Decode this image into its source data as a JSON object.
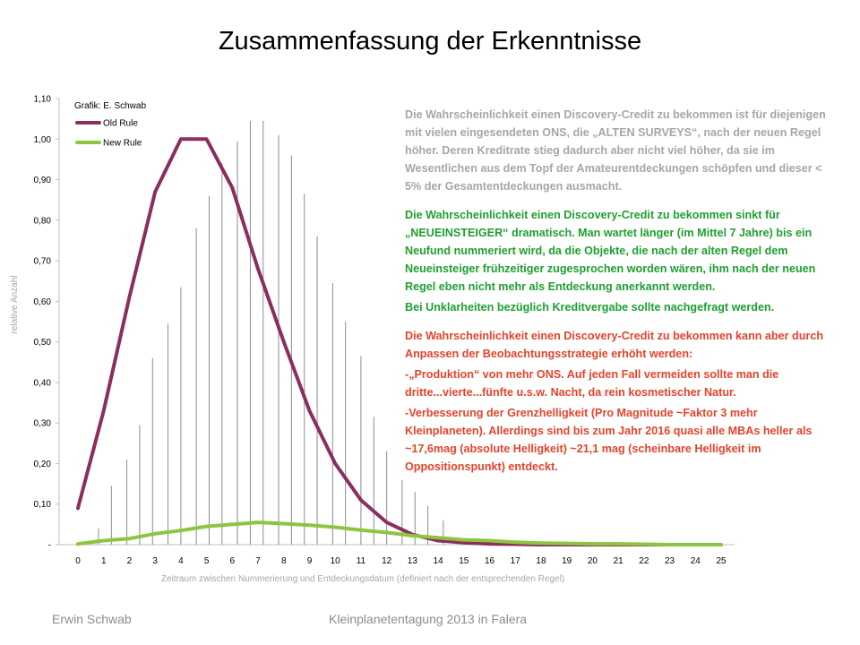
{
  "slide": {
    "title": "Zusammenfassung der Erkenntnisse",
    "footer_left": "Erwin Schwab",
    "footer_center": "Kleinplanetentagung 2013 in Falera"
  },
  "chart_data": {
    "type": "line",
    "credit": "Grafik: E. Schwab",
    "xlabel": "Zeitraum zwischen Nummerierung und Entdeckungsdatum  (definiert nach der entsprechenden Regel)",
    "ylabel": "relative Anzahl",
    "legend_position": "top-left",
    "ylim": [
      0,
      1.1
    ],
    "xlim": [
      0,
      25
    ],
    "x_ticks": [
      "0",
      "1",
      "2",
      "3",
      "4",
      "5",
      "6",
      "7",
      "8",
      "9",
      "10",
      "11",
      "12",
      "13",
      "14",
      "15",
      "16",
      "17",
      "18",
      "19",
      "20",
      "21",
      "22",
      "23",
      "24",
      "25"
    ],
    "y_ticks": [
      {
        "value": 0,
        "label": "-"
      },
      {
        "value": 0.1,
        "label": "0,10"
      },
      {
        "value": 0.2,
        "label": "0,20"
      },
      {
        "value": 0.3,
        "label": "0,30"
      },
      {
        "value": 0.4,
        "label": "0,40"
      },
      {
        "value": 0.5,
        "label": "0,50"
      },
      {
        "value": 0.6,
        "label": "0,60"
      },
      {
        "value": 0.7,
        "label": "0,70"
      },
      {
        "value": 0.8,
        "label": "0,80"
      },
      {
        "value": 0.9,
        "label": "0,90"
      },
      {
        "value": 1.0,
        "label": "1,00"
      },
      {
        "value": 1.1,
        "label": "1,10"
      }
    ],
    "series": [
      {
        "name": "Old Rule",
        "color": "#8b2e5f",
        "x": [
          0,
          1,
          2,
          3,
          4,
          5,
          6,
          7,
          8,
          9,
          10,
          11,
          12,
          13,
          14,
          15,
          16,
          17,
          18,
          19,
          20,
          21,
          22,
          23,
          24,
          25
        ],
        "values": [
          0.09,
          0.33,
          0.61,
          0.87,
          1.0,
          1.0,
          0.88,
          0.68,
          0.5,
          0.33,
          0.2,
          0.11,
          0.055,
          0.025,
          0.01,
          0.005,
          0.002,
          0.001,
          0,
          0,
          0,
          0,
          0,
          0,
          0,
          0
        ]
      },
      {
        "name": "New Rule",
        "color": "#8cc63f",
        "x": [
          0,
          1,
          2,
          3,
          4,
          5,
          6,
          7,
          8,
          9,
          10,
          11,
          12,
          13,
          14,
          15,
          16,
          17,
          18,
          19,
          20,
          21,
          22,
          23,
          24,
          25
        ],
        "values": [
          0.002,
          0.01,
          0.015,
          0.027,
          0.035,
          0.045,
          0.05,
          0.055,
          0.052,
          0.048,
          0.043,
          0.036,
          0.03,
          0.022,
          0.017,
          0.012,
          0.01,
          0.006,
          0.004,
          0.003,
          0.002,
          0.002,
          0.001,
          0,
          0,
          0
        ]
      }
    ],
    "vertical_lines": {
      "color": "#8c8c8c",
      "x": [
        0.8,
        1.3,
        1.9,
        2.4,
        2.9,
        3.5,
        4.0,
        4.6,
        5.1,
        5.6,
        6.2,
        6.7,
        7.2,
        7.8,
        8.3,
        8.8,
        9.3,
        9.9,
        10.4,
        11.0,
        11.5,
        12.0,
        12.6,
        13.1,
        13.6,
        14.2
      ],
      "values": [
        0.04,
        0.145,
        0.21,
        0.295,
        0.46,
        0.545,
        0.635,
        0.78,
        0.86,
        0.94,
        0.995,
        1.045,
        1.045,
        1.01,
        0.96,
        0.865,
        0.76,
        0.645,
        0.55,
        0.465,
        0.315,
        0.23,
        0.16,
        0.13,
        0.095,
        0.06
      ]
    }
  },
  "text_blocks": [
    {
      "style": "gray",
      "text": "Die Wahrscheinlichkeit einen Discovery-Credit zu bekommen ist für diejenigen mit vielen eingesendeten ONS, die „ALTEN SURVEYS“, nach der neuen Regel höher. Deren Kreditrate stieg dadurch aber nicht viel höher, da sie im Wesentlichen aus dem Topf der Amateurentdeckungen schöpfen und dieser < 5% der Gesamtentdeckungen ausmacht."
    },
    {
      "style": "green",
      "text": "Die Wahrscheinlichkeit  einen Discovery-Credit zu bekommen sinkt für „NEUEINSTEIGER“ dramatisch. Man wartet länger (im Mittel 7 Jahre) bis ein Neufund nummeriert wird, da die Objekte, die nach der alten Regel dem Neueinsteiger frühzeitiger zugesprochen worden wären, ihm nach der neuen Regel eben nicht mehr als Entdeckung anerkannt werden."
    },
    {
      "style": "green",
      "text": "Bei Unklarheiten bezüglich Kreditvergabe sollte nachgefragt werden."
    },
    {
      "style": "red",
      "text": "Die Wahrscheinlichkeit  einen Discovery-Credit zu bekommen kann aber durch Anpassen der Beobachtungsstrategie erhöht werden:"
    },
    {
      "style": "red",
      "text": "-„Produktion“ von mehr ONS. Auf jeden Fall vermeiden sollte man die dritte...vierte...fünfte u.s.w. Nacht, da rein kosmetischer Natur."
    },
    {
      "style": "red",
      "text": "-Verbesserung der Grenzhelligkeit (Pro Magnitude ~Faktor 3 mehr Kleinplaneten). Allerdings sind bis zum Jahr 2016 quasi alle MBAs heller als ~17,6mag (absolute Helligkeit) ~21,1 mag (scheinbare Helligkeit im Oppositionspunkt) entdeckt."
    }
  ]
}
